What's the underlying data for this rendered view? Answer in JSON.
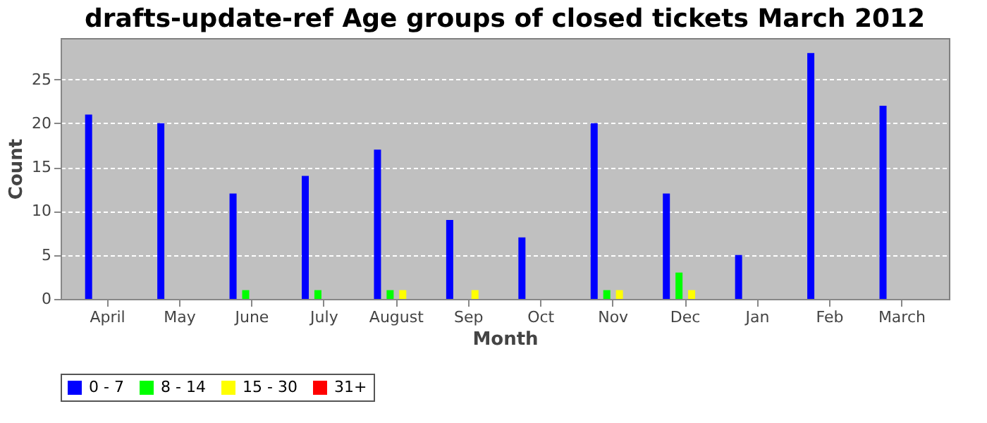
{
  "chart_data": {
    "type": "bar",
    "title": "drafts-update-ref Age groups of closed tickets March 2012",
    "xlabel": "Month",
    "ylabel": "Count",
    "categories": [
      "April",
      "May",
      "June",
      "July",
      "August",
      "Sep",
      "Oct",
      "Nov",
      "Dec",
      "Jan",
      "Feb",
      "March"
    ],
    "series": [
      {
        "name": "0 - 7",
        "color": "#0000ff",
        "values": [
          21,
          20,
          12,
          14,
          17,
          9,
          7,
          20,
          12,
          5,
          28,
          22
        ]
      },
      {
        "name": "8 - 14",
        "color": "#00ff00",
        "values": [
          0,
          0,
          1,
          1,
          1,
          0,
          0,
          1,
          3,
          0,
          0,
          0
        ]
      },
      {
        "name": "15 - 30",
        "color": "#ffff00",
        "values": [
          0,
          0,
          0,
          0,
          1,
          1,
          0,
          1,
          1,
          0,
          0,
          0
        ]
      },
      {
        "name": "31+",
        "color": "#ff0000",
        "values": [
          0,
          0,
          0,
          0,
          0,
          0,
          0,
          0,
          0,
          0,
          0,
          0
        ]
      }
    ],
    "ylim": [
      0,
      29.7
    ],
    "yticks": [
      0,
      5,
      10,
      15,
      20,
      25
    ],
    "grid": "y",
    "legend": "bottom"
  }
}
